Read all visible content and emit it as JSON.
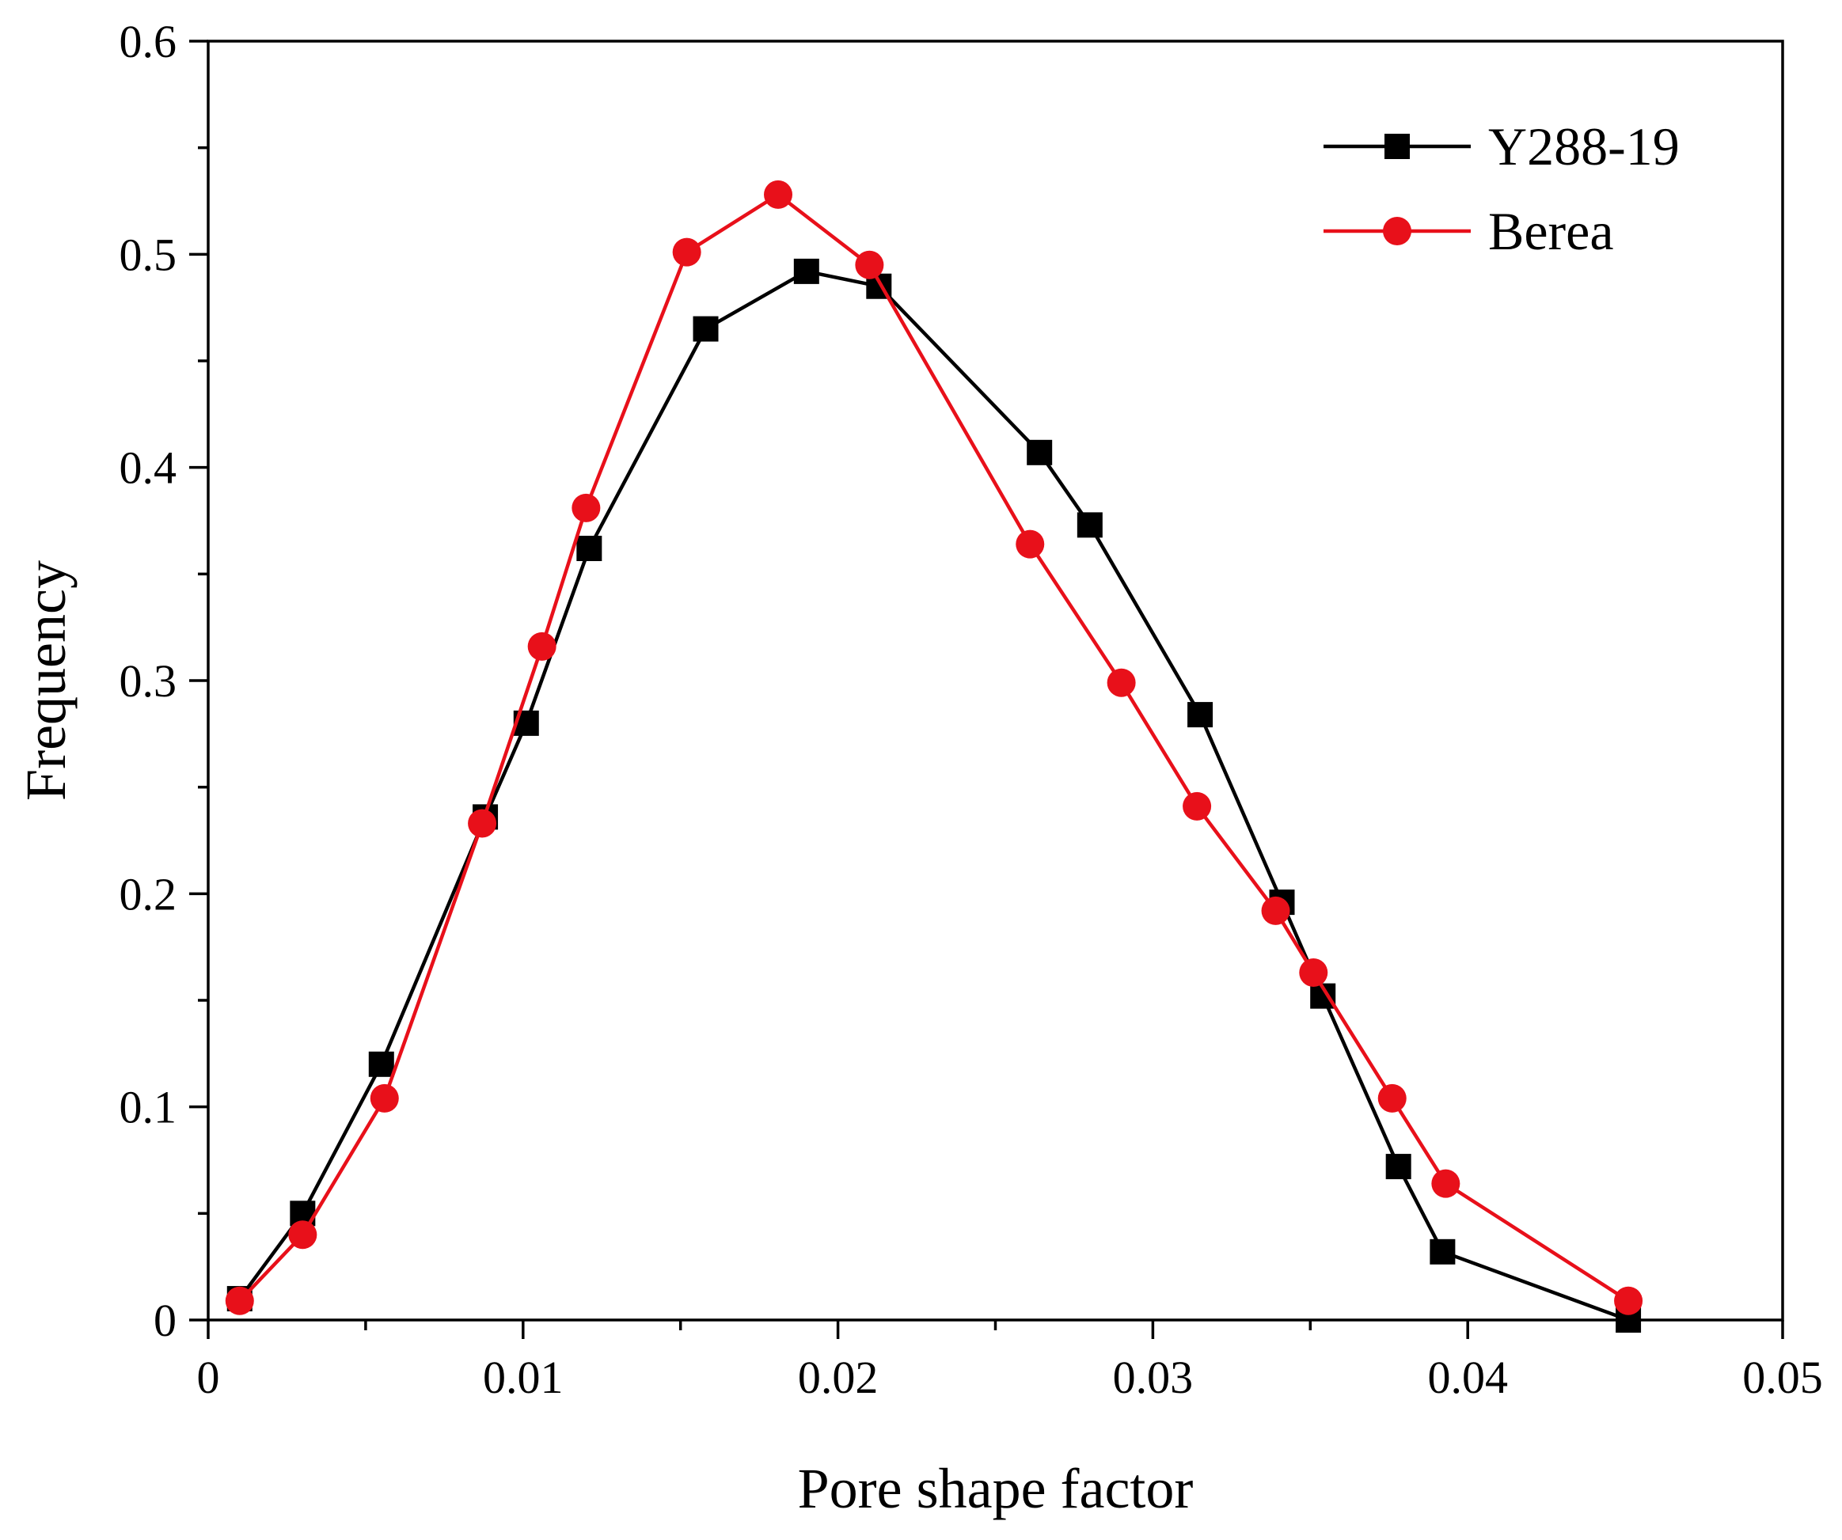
{
  "chart_data": {
    "type": "line",
    "xlabel": "Pore shape factor",
    "ylabel": "Frequency",
    "xlim": [
      0,
      0.05
    ],
    "ylim": [
      0,
      0.6
    ],
    "x_ticks": [
      "0",
      "0.01",
      "0.02",
      "0.03",
      "0.04",
      "0.05"
    ],
    "y_ticks": [
      "0",
      "0.1",
      "0.2",
      "0.3",
      "0.4",
      "0.5",
      "0.6"
    ],
    "grid": false,
    "legend_position": "top-right",
    "series": [
      {
        "name": "Y288-19",
        "color": "#000000",
        "marker": "square",
        "x": [
          0.001,
          0.003,
          0.0055,
          0.0088,
          0.0101,
          0.0121,
          0.0158,
          0.019,
          0.0213,
          0.0264,
          0.028,
          0.0315,
          0.0341,
          0.0354,
          0.0378,
          0.0392,
          0.0451
        ],
        "y": [
          0.01,
          0.05,
          0.12,
          0.236,
          0.28,
          0.362,
          0.465,
          0.492,
          0.485,
          0.407,
          0.373,
          0.284,
          0.196,
          0.152,
          0.072,
          0.032,
          0.0
        ]
      },
      {
        "name": "Berea",
        "color": "#e8101a",
        "marker": "circle",
        "x": [
          0.001,
          0.003,
          0.0056,
          0.0087,
          0.0106,
          0.012,
          0.0152,
          0.0181,
          0.021,
          0.0261,
          0.029,
          0.0314,
          0.0339,
          0.0351,
          0.0376,
          0.0393,
          0.0451
        ],
        "y": [
          0.009,
          0.04,
          0.104,
          0.233,
          0.316,
          0.381,
          0.501,
          0.528,
          0.495,
          0.364,
          0.299,
          0.241,
          0.192,
          0.163,
          0.104,
          0.064,
          0.009
        ]
      }
    ]
  }
}
